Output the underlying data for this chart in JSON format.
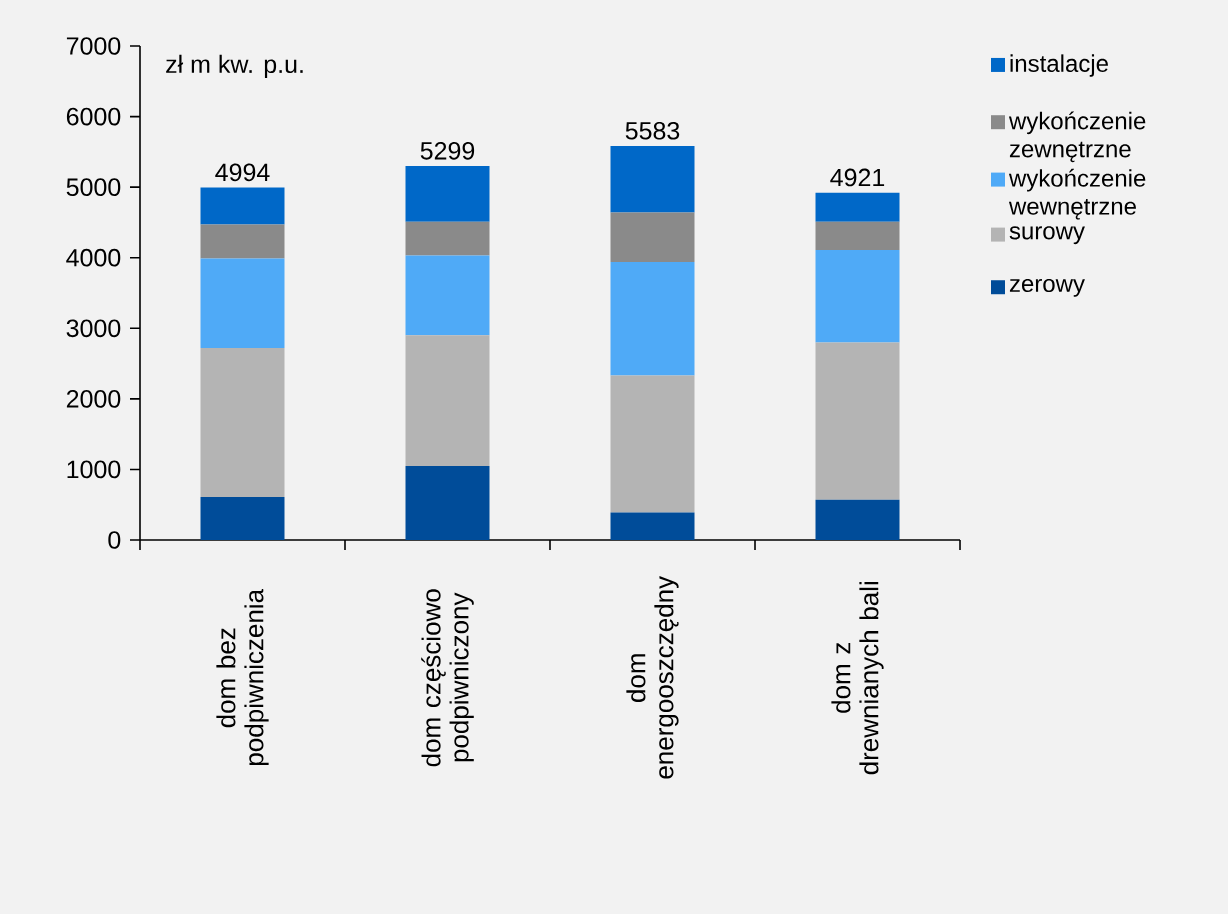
{
  "chart_data": {
    "type": "bar",
    "stacked": true,
    "ylabel": "zł m kw. p.u.",
    "categories": [
      "dom bez podpiwniczenia",
      "dom częściowo podpiwniczony",
      "dom energooszczędny",
      "dom z drewnianych bali"
    ],
    "series": [
      {
        "name": "zerowy",
        "color": "#004c99",
        "values": [
          610,
          1050,
          390,
          570
        ]
      },
      {
        "name": "surowy",
        "color": "#b4b4b4",
        "values": [
          2110,
          1850,
          1940,
          2230
        ]
      },
      {
        "name": "wykończenie wewnętrzne",
        "color": "#4faaf7",
        "values": [
          1270,
          1130,
          1610,
          1310
        ]
      },
      {
        "name": "wykończenie zewnętrzne",
        "color": "#8a8a8a",
        "values": [
          480,
          480,
          700,
          400
        ]
      },
      {
        "name": "instalacje",
        "color": "#0068c8",
        "values": [
          524,
          789,
          943,
          411
        ]
      }
    ],
    "totals": [
      "4994",
      "5299",
      "5583",
      "4921"
    ],
    "ylim": [
      0,
      7000
    ],
    "yticks": [
      0,
      1000,
      2000,
      3000,
      4000,
      5000,
      6000,
      7000
    ],
    "grid": false,
    "legend": "right"
  }
}
